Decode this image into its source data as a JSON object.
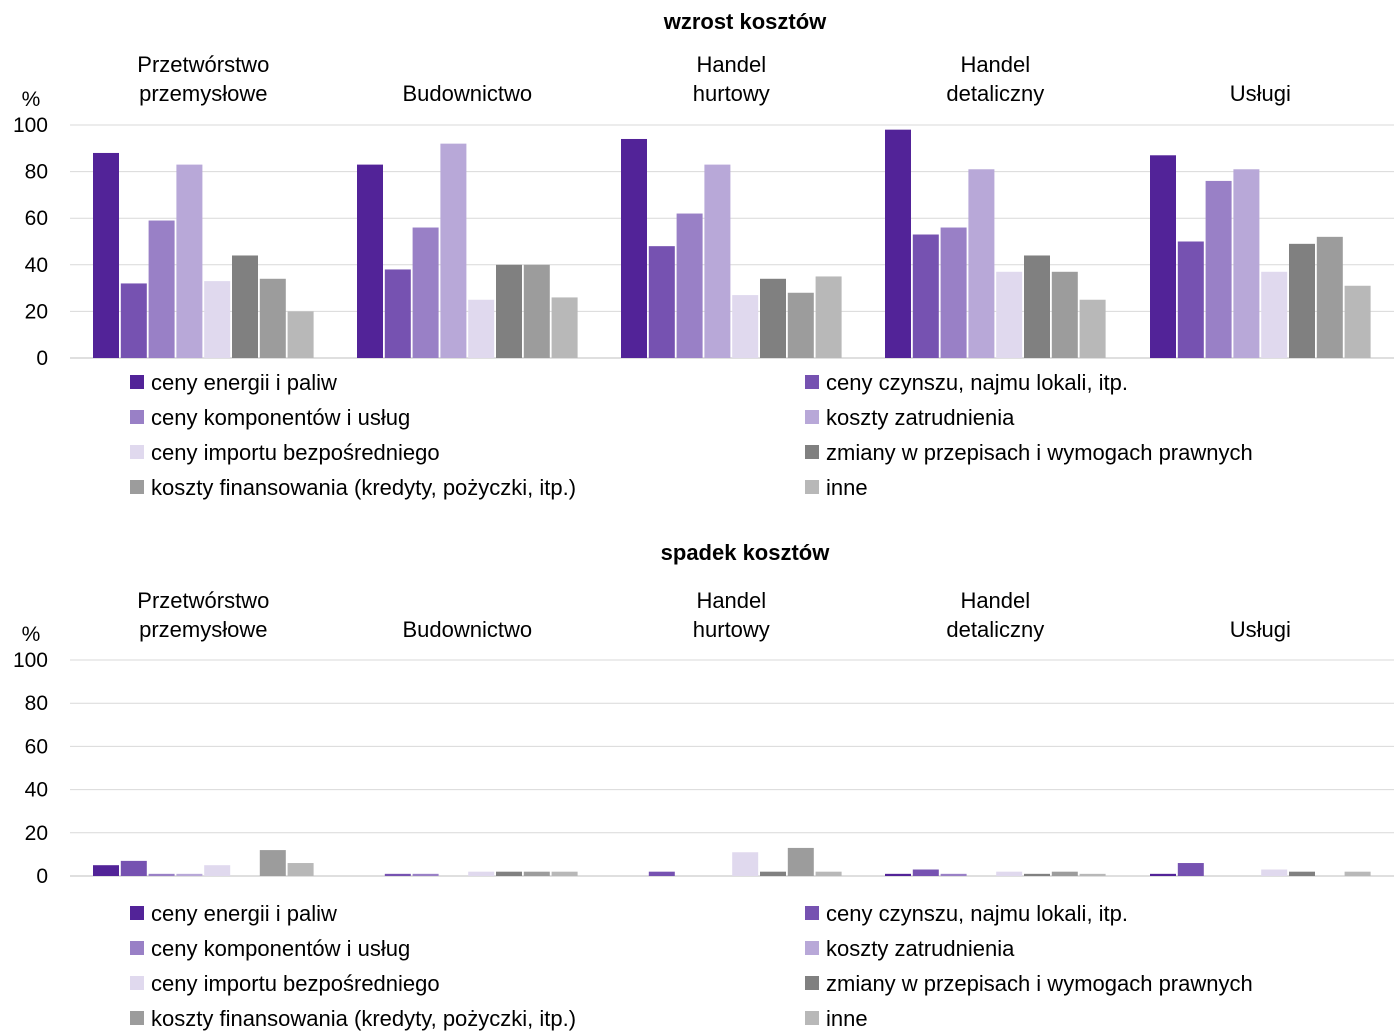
{
  "chart_data": [
    {
      "type": "bar",
      "title": "wzrost kosztów",
      "ylabel": "%",
      "ylim": [
        0,
        100
      ],
      "yticks": [
        "0",
        "20",
        "40",
        "60",
        "80",
        "100"
      ],
      "grid": true,
      "legend_position": "bottom",
      "groups": [
        {
          "label_lines": [
            "Przetwórstwo",
            "przemysłowe"
          ],
          "values": [
            88,
            32,
            59,
            83,
            33,
            44,
            34,
            20
          ]
        },
        {
          "label_lines": [
            "Budownictwo"
          ],
          "values": [
            83,
            38,
            56,
            92,
            25,
            40,
            40,
            26
          ]
        },
        {
          "label_lines": [
            "Handel",
            "hurtowy"
          ],
          "values": [
            94,
            48,
            62,
            83,
            27,
            34,
            28,
            35
          ]
        },
        {
          "label_lines": [
            "Handel",
            "detaliczny"
          ],
          "values": [
            98,
            53,
            56,
            81,
            37,
            44,
            37,
            25
          ]
        },
        {
          "label_lines": [
            "Usługi"
          ],
          "values": [
            87,
            50,
            76,
            81,
            37,
            49,
            52,
            31
          ]
        }
      ]
    },
    {
      "type": "bar",
      "title": "spadek kosztów",
      "ylabel": "%",
      "ylim": [
        0,
        100
      ],
      "yticks": [
        "0",
        "20",
        "40",
        "60",
        "80",
        "100"
      ],
      "grid": true,
      "legend_position": "bottom",
      "groups": [
        {
          "label_lines": [
            "Przetwórstwo",
            "przemysłowe"
          ],
          "values": [
            5,
            7,
            1,
            1,
            5,
            0,
            12,
            6
          ]
        },
        {
          "label_lines": [
            "Budownictwo"
          ],
          "values": [
            0,
            1,
            1,
            0,
            2,
            2,
            2,
            2
          ]
        },
        {
          "label_lines": [
            "Handel",
            "hurtowy"
          ],
          "values": [
            0,
            2,
            0,
            0,
            11,
            2,
            13,
            2
          ]
        },
        {
          "label_lines": [
            "Handel",
            "detaliczny"
          ],
          "values": [
            1,
            3,
            1,
            0,
            2,
            1,
            2,
            1
          ]
        },
        {
          "label_lines": [
            "Usługi"
          ],
          "values": [
            1,
            6,
            0,
            0,
            3,
            2,
            0,
            2
          ]
        }
      ]
    }
  ],
  "series": [
    {
      "name": "ceny energii i paliw",
      "color": "#522398"
    },
    {
      "name": "ceny czynszu, najmu lokali, itp.",
      "color": "#7652b1"
    },
    {
      "name": "ceny komponentów i usług",
      "color": "#9980c6"
    },
    {
      "name": "koszty zatrudnienia",
      "color": "#b8a8d8"
    },
    {
      "name": "ceny importu bezpośredniego",
      "color": "#e0d9ee"
    },
    {
      "name": "zmiany w przepisach i wymogach prawnych",
      "color": "#808080"
    },
    {
      "name": "koszty finansowania (kredyty, pożyczki, itp.)",
      "color": "#9c9c9c"
    },
    {
      "name": "inne",
      "color": "#b8b8b8"
    }
  ],
  "legend_order": [
    0,
    1,
    2,
    3,
    4,
    5,
    6,
    7
  ]
}
